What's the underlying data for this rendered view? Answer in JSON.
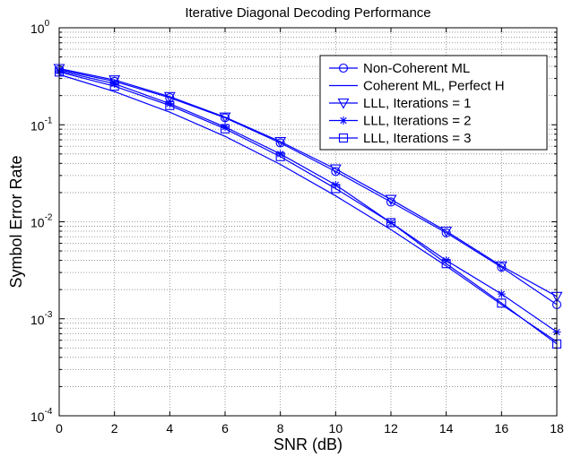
{
  "chart_data": {
    "type": "line",
    "title": "Iterative Diagonal Decoding Performance",
    "xlabel": "SNR (dB)",
    "ylabel": "Symbol Error Rate",
    "yscale": "log",
    "xlim": [
      0,
      18
    ],
    "ylim": [
      0.0001,
      1
    ],
    "x_ticks": [
      0,
      2,
      4,
      6,
      8,
      10,
      12,
      14,
      16,
      18
    ],
    "y_ticks": [
      {
        "value": 1,
        "base": "10",
        "exp": "0"
      },
      {
        "value": 0.1,
        "base": "10",
        "exp": "-1"
      },
      {
        "value": 0.01,
        "base": "10",
        "exp": "-2"
      },
      {
        "value": 0.001,
        "base": "10",
        "exp": "-3"
      },
      {
        "value": 0.0001,
        "base": "10",
        "exp": "-4"
      }
    ],
    "grid": true,
    "legend_position": "top-right",
    "x": [
      0,
      2,
      4,
      6,
      8,
      10,
      12,
      14,
      16,
      18
    ],
    "series": [
      {
        "name": "Non-Coherent ML",
        "marker": "circle",
        "values": [
          0.37,
          0.28,
          0.19,
          0.118,
          0.065,
          0.033,
          0.016,
          0.0077,
          0.0034,
          0.0014
        ]
      },
      {
        "name": "Coherent ML, Perfect H",
        "marker": "none",
        "values": [
          0.33,
          0.22,
          0.135,
          0.076,
          0.039,
          0.0185,
          0.0083,
          0.0035,
          0.0014,
          0.00058
        ]
      },
      {
        "name": "LLL, Iterations = 1",
        "marker": "triangle-down",
        "values": [
          0.38,
          0.29,
          0.195,
          0.12,
          0.067,
          0.035,
          0.017,
          0.008,
          0.0035,
          0.0017
        ]
      },
      {
        "name": "LLL, Iterations = 2",
        "marker": "star",
        "values": [
          0.36,
          0.265,
          0.165,
          0.095,
          0.05,
          0.024,
          0.0098,
          0.004,
          0.0018,
          0.00073
        ]
      },
      {
        "name": "LLL, Iterations = 3",
        "marker": "square",
        "values": [
          0.35,
          0.25,
          0.158,
          0.091,
          0.047,
          0.022,
          0.0098,
          0.0037,
          0.00145,
          0.00055
        ]
      }
    ],
    "colors": {
      "series": "#0000ff",
      "grid": "#808080",
      "axes": "#000000"
    }
  }
}
